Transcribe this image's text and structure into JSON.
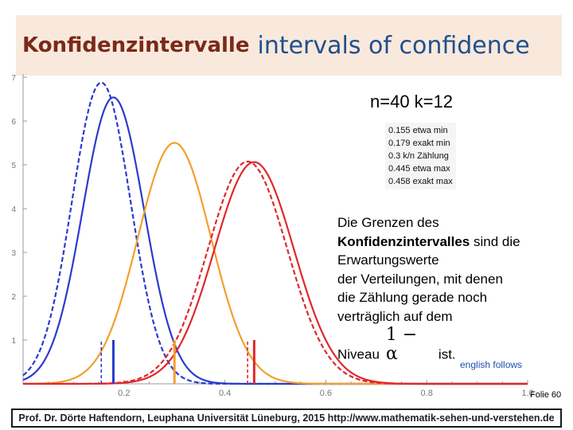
{
  "title": {
    "de": "Konfidenzintervalle",
    "en": "intervals of confidence"
  },
  "params": "n=40  k=12",
  "legend_rows": [
    "0.155 etwa min",
    "0.179 exakt min",
    "0.3 k/n Zählung",
    "0.445 etwa max",
    "0.458 exakt max"
  ],
  "explanation": {
    "line1": "Die Grenzen des",
    "bold": "Konfidenzintervalles",
    "line2_rest": " sind die",
    "line3": "Erwartungswerte",
    "line4": "der Verteilungen, mit denen",
    "line5": "die Zählung gerade noch",
    "line6": "verträglich auf dem",
    "niveau": "Niveau",
    "formula": "1 − α",
    "ist": "ist."
  },
  "english_follows": "english follows",
  "folie": "Folie  60",
  "footer": "Prof. Dr. Dörte Haftendorn, Leuphana Universität Lüneburg, 2015  http://www.mathematik-sehen-und-verstehen.de",
  "colors": {
    "blue": "#2a3ccc",
    "orange": "#f2a02c",
    "red": "#e0282c",
    "axis": "#9a9a9a"
  },
  "chart_data": {
    "type": "line",
    "xlim": [
      0.0,
      1.0
    ],
    "ylim": [
      0,
      7
    ],
    "x_ticks": [
      0.2,
      0.4,
      0.6,
      0.8,
      1.0
    ],
    "x_tick_labels": [
      "0.2",
      "0.4",
      "0.6",
      "0.8",
      "1.0"
    ],
    "y_ticks": [
      1,
      2,
      3,
      4,
      5,
      6,
      7
    ],
    "y_tick_labels": [
      "1",
      "2",
      "3",
      "4",
      "5",
      "6",
      "7"
    ],
    "series": [
      {
        "color": "blue",
        "style": "dashed",
        "mean": 0.155,
        "sd": 0.058
      },
      {
        "color": "blue",
        "style": "solid",
        "mean": 0.179,
        "sd": 0.061
      },
      {
        "color": "orange",
        "style": "solid",
        "mean": 0.3,
        "sd": 0.0725
      },
      {
        "color": "red",
        "style": "dashed",
        "mean": 0.445,
        "sd": 0.0786
      },
      {
        "color": "red",
        "style": "solid",
        "mean": 0.458,
        "sd": 0.0788
      }
    ],
    "vlines": [
      {
        "x": 0.155,
        "color": "blue",
        "style": "dashed",
        "height": 1.0
      },
      {
        "x": 0.179,
        "color": "blue",
        "style": "solid",
        "height": 1.0
      },
      {
        "x": 0.3,
        "color": "orange",
        "style": "solid",
        "height": 1.0
      },
      {
        "x": 0.445,
        "color": "red",
        "style": "dashed",
        "height": 1.0
      },
      {
        "x": 0.458,
        "color": "red",
        "style": "solid",
        "height": 1.0
      }
    ]
  }
}
